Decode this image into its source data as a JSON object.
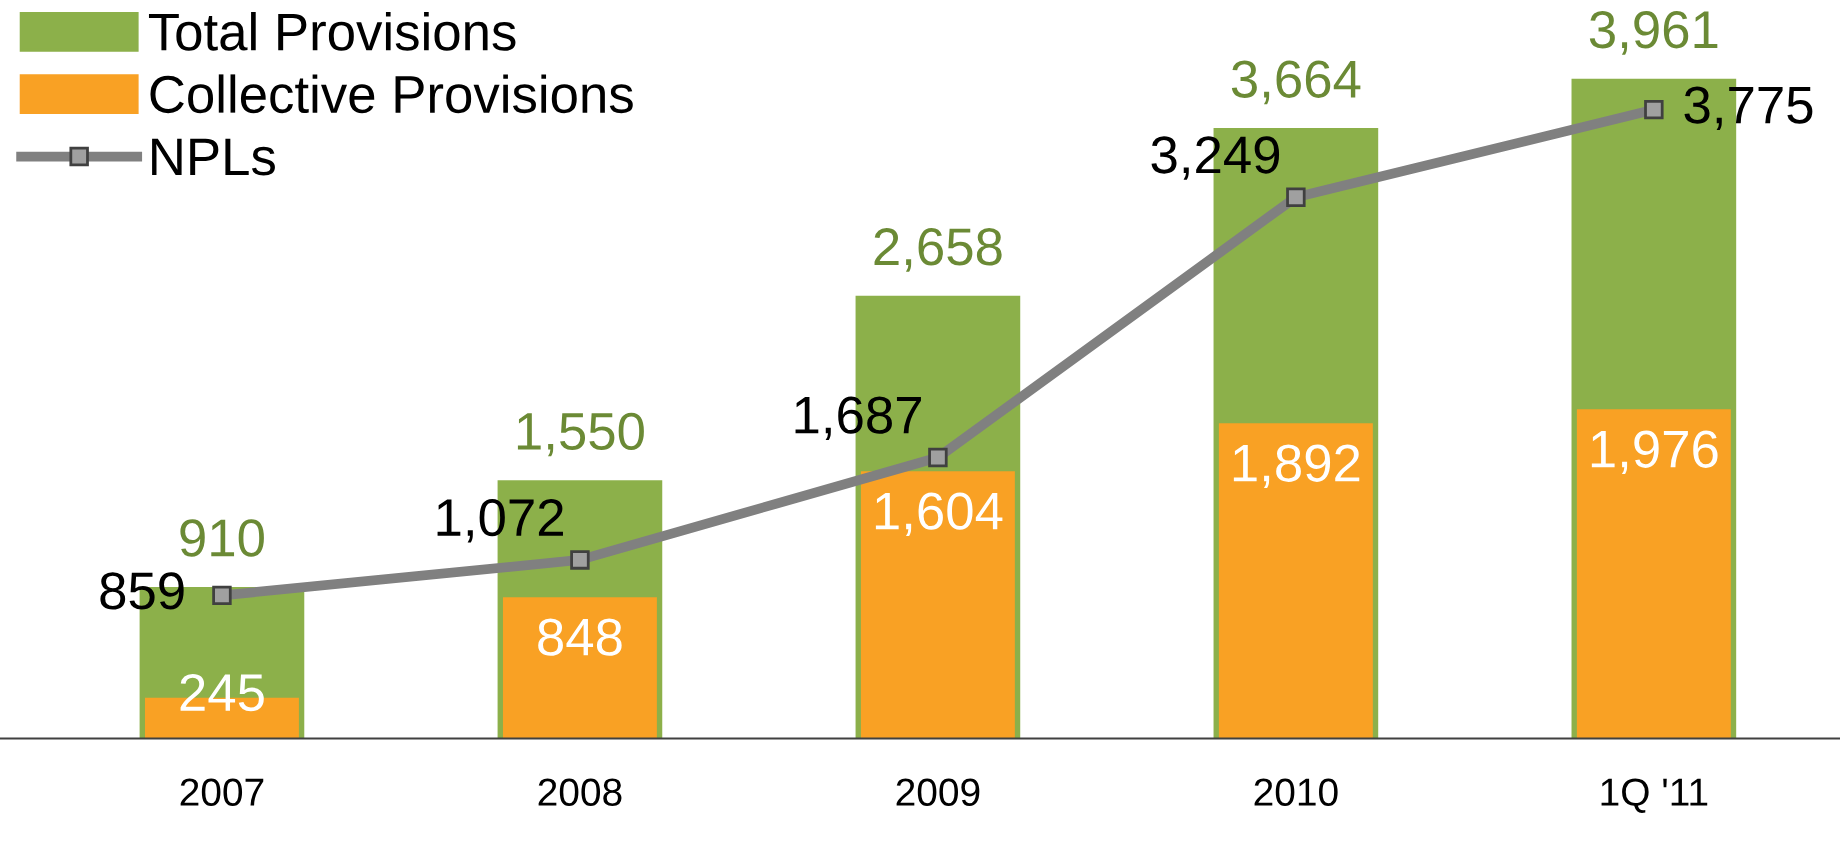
{
  "chart_data": {
    "type": "bar",
    "categories": [
      "2007",
      "2008",
      "2009",
      "2010",
      "1Q '11"
    ],
    "series": [
      {
        "name": "Total Provisions",
        "color": "#8cb04a",
        "values": [
          910,
          1550,
          2658,
          3664,
          3961
        ],
        "value_labels": [
          "910",
          "1,550",
          "2,658",
          "3,664",
          "3,961"
        ]
      },
      {
        "name": "Collective Provisions",
        "color": "#f9a124",
        "values": [
          245,
          848,
          1604,
          1892,
          1976
        ],
        "value_labels": [
          "245",
          "848",
          "1,604",
          "1,892",
          "1,976"
        ]
      },
      {
        "name": "NPLs",
        "type": "line",
        "color": "#808080",
        "values": [
          859,
          1072,
          1687,
          3249,
          3775
        ],
        "value_labels": [
          "859",
          "1,072",
          "1,687",
          "3,249",
          "3,775"
        ]
      }
    ],
    "legend": "top left",
    "marker": "square",
    "grid": false
  }
}
